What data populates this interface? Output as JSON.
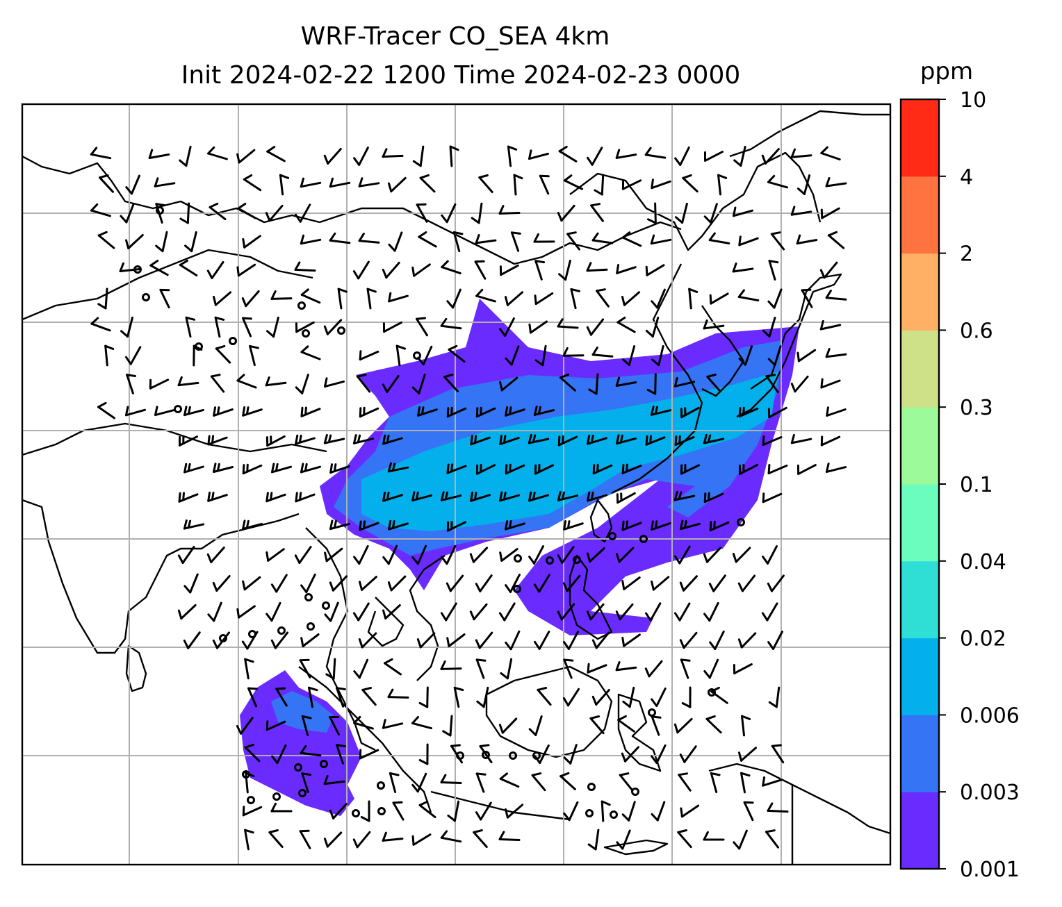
{
  "title": {
    "line1": "WRF-Tracer CO_SEA 4km",
    "line2": "Init 2024-02-22 1200 Time 2024-02-23 0000"
  },
  "colorbar": {
    "units": "ppm",
    "levels": [
      "0.001",
      "0.003",
      "0.006",
      "0.02",
      "0.04",
      "0.1",
      "0.3",
      "0.6",
      "2",
      "4",
      "10"
    ],
    "colors": [
      "#6a2bff",
      "#3574f5",
      "#03b0eb",
      "#2fdfd6",
      "#6bfdbd",
      "#9cfa9a",
      "#cfe188",
      "#feb065",
      "#ff7340",
      "#ff2b17"
    ]
  },
  "map": {
    "plume_colors": {
      "level1": "#6a2bff",
      "level2": "#3574f5",
      "level3": "#03b0eb"
    },
    "grid_color": "#b0b0b0",
    "coastline_color": "#000000",
    "calm_symbol": "circle",
    "wind_symbol": "barb"
  }
}
